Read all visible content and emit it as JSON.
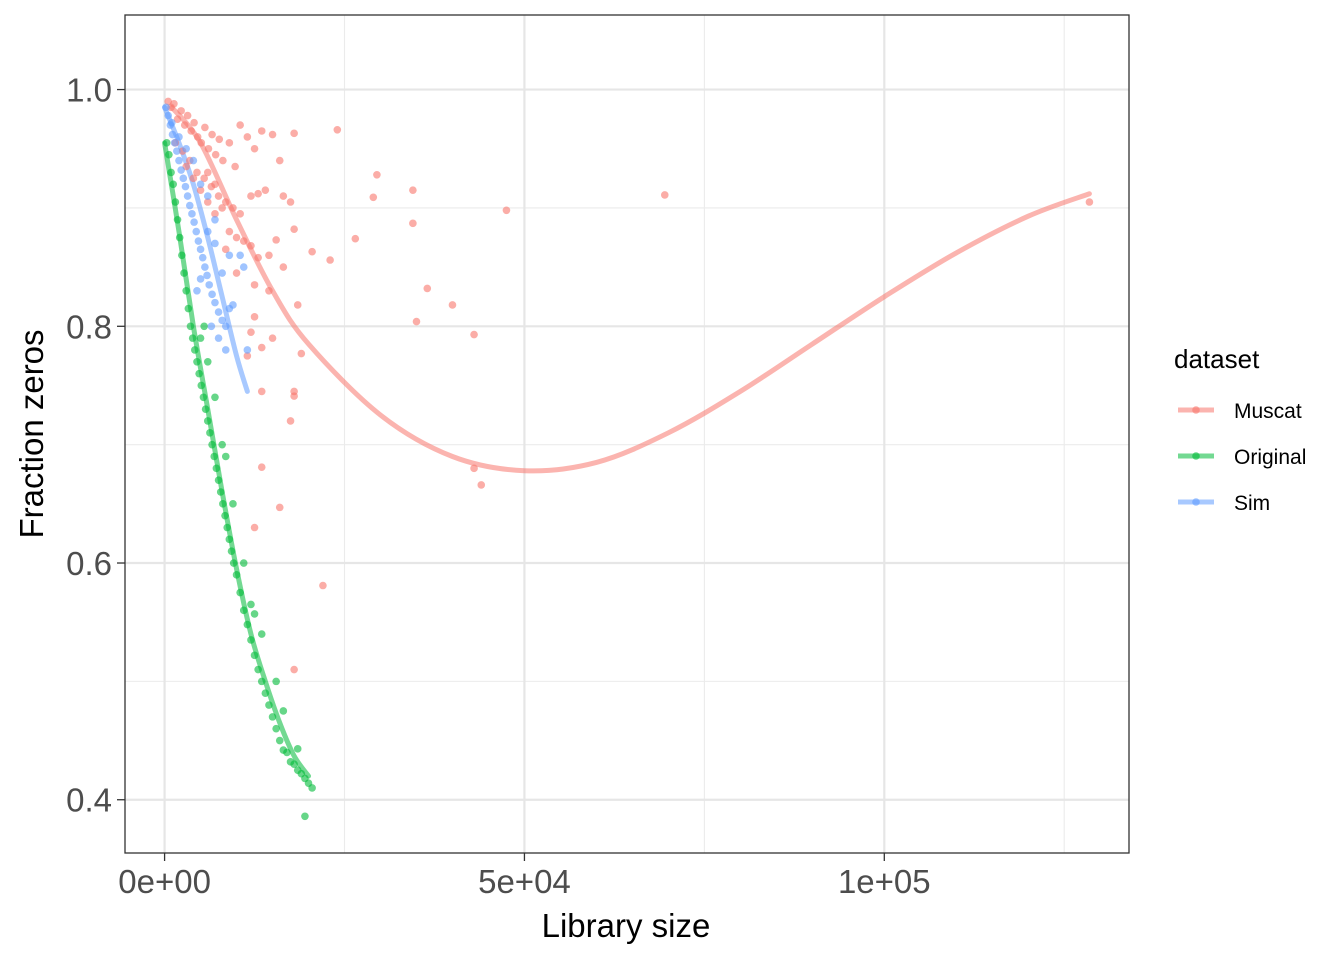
{
  "chart_data": {
    "type": "scatter",
    "xlabel": "Library size",
    "ylabel": "Fraction zeros",
    "xlim": [
      -5500,
      134000
    ],
    "ylim": [
      0.355,
      1.063
    ],
    "x_ticks": [
      0,
      50000,
      100000
    ],
    "x_tick_labels": [
      "0e+00",
      "5e+04",
      "1e+05"
    ],
    "y_ticks": [
      0.4,
      0.6,
      0.8,
      1.0
    ],
    "y_tick_labels": [
      "0.4",
      "0.6",
      "0.8",
      "1.0"
    ],
    "grid": true,
    "legend": {
      "title": "dataset",
      "position": "right"
    },
    "series": [
      {
        "name": "Muscat",
        "color": "#F8766D",
        "points": [
          [
            500,
            0.99
          ],
          [
            900,
            0.985
          ],
          [
            1300,
            0.988
          ],
          [
            1800,
            0.975
          ],
          [
            2300,
            0.982
          ],
          [
            2800,
            0.97
          ],
          [
            3200,
            0.978
          ],
          [
            3700,
            0.965
          ],
          [
            4100,
            0.972
          ],
          [
            4600,
            0.96
          ],
          [
            5100,
            0.955
          ],
          [
            5600,
            0.968
          ],
          [
            6100,
            0.95
          ],
          [
            6600,
            0.962
          ],
          [
            7100,
            0.945
          ],
          [
            7600,
            0.958
          ],
          [
            8100,
            0.94
          ],
          [
            9000,
            0.955
          ],
          [
            9800,
            0.935
          ],
          [
            10500,
            0.97
          ],
          [
            11500,
            0.96
          ],
          [
            12500,
            0.95
          ],
          [
            13500,
            0.965
          ],
          [
            15000,
            0.962
          ],
          [
            16000,
            0.94
          ],
          [
            18000,
            0.963
          ],
          [
            24000,
            0.966
          ],
          [
            1500,
            0.955
          ],
          [
            2500,
            0.948
          ],
          [
            3500,
            0.94
          ],
          [
            4500,
            0.93
          ],
          [
            5500,
            0.925
          ],
          [
            6500,
            0.918
          ],
          [
            7500,
            0.91
          ],
          [
            8500,
            0.905
          ],
          [
            9500,
            0.9
          ],
          [
            10500,
            0.895
          ],
          [
            12000,
            0.91
          ],
          [
            13000,
            0.912
          ],
          [
            14000,
            0.915
          ],
          [
            16500,
            0.91
          ],
          [
            17500,
            0.905
          ],
          [
            29500,
            0.928
          ],
          [
            29000,
            0.909
          ],
          [
            34500,
            0.915
          ],
          [
            34500,
            0.887
          ],
          [
            47500,
            0.898
          ],
          [
            69500,
            0.911
          ],
          [
            9000,
            0.88
          ],
          [
            10000,
            0.875
          ],
          [
            11000,
            0.872
          ],
          [
            12000,
            0.868
          ],
          [
            13000,
            0.858
          ],
          [
            14500,
            0.86
          ],
          [
            15500,
            0.873
          ],
          [
            16500,
            0.85
          ],
          [
            18000,
            0.882
          ],
          [
            20500,
            0.863
          ],
          [
            23000,
            0.856
          ],
          [
            26500,
            0.874
          ],
          [
            8500,
            0.865
          ],
          [
            10000,
            0.845
          ],
          [
            12500,
            0.835
          ],
          [
            14500,
            0.83
          ],
          [
            18500,
            0.818
          ],
          [
            36500,
            0.832
          ],
          [
            40000,
            0.818
          ],
          [
            35000,
            0.804
          ],
          [
            43000,
            0.793
          ],
          [
            12500,
            0.808
          ],
          [
            12000,
            0.795
          ],
          [
            13500,
            0.782
          ],
          [
            11500,
            0.775
          ],
          [
            15000,
            0.79
          ],
          [
            19000,
            0.777
          ],
          [
            13500,
            0.745
          ],
          [
            18000,
            0.745
          ],
          [
            18000,
            0.741
          ],
          [
            17500,
            0.72
          ],
          [
            13500,
            0.681
          ],
          [
            43000,
            0.68
          ],
          [
            44000,
            0.666
          ],
          [
            16000,
            0.647
          ],
          [
            12500,
            0.63
          ],
          [
            22000,
            0.581
          ],
          [
            18000,
            0.51
          ],
          [
            128500,
            0.905
          ],
          [
            3000,
            0.935
          ],
          [
            4000,
            0.925
          ],
          [
            5000,
            0.915
          ],
          [
            6000,
            0.905
          ],
          [
            7000,
            0.895
          ],
          [
            6000,
            0.93
          ],
          [
            7000,
            0.92
          ],
          [
            8000,
            0.9
          ]
        ],
        "fit": [
          [
            1000,
            0.985
          ],
          [
            5000,
            0.955
          ],
          [
            10000,
            0.89
          ],
          [
            15000,
            0.83
          ],
          [
            20000,
            0.785
          ],
          [
            30000,
            0.725
          ],
          [
            40000,
            0.69
          ],
          [
            50000,
            0.678
          ],
          [
            60000,
            0.685
          ],
          [
            70000,
            0.71
          ],
          [
            80000,
            0.745
          ],
          [
            90000,
            0.785
          ],
          [
            100000,
            0.825
          ],
          [
            110000,
            0.862
          ],
          [
            120000,
            0.893
          ],
          [
            128500,
            0.912
          ]
        ]
      },
      {
        "name": "Original",
        "color": "#00BA38",
        "points": [
          [
            300,
            0.955
          ],
          [
            600,
            0.945
          ],
          [
            900,
            0.93
          ],
          [
            1200,
            0.92
          ],
          [
            1500,
            0.905
          ],
          [
            1800,
            0.89
          ],
          [
            2100,
            0.875
          ],
          [
            2400,
            0.86
          ],
          [
            2700,
            0.845
          ],
          [
            3000,
            0.83
          ],
          [
            3300,
            0.815
          ],
          [
            3600,
            0.8
          ],
          [
            3900,
            0.79
          ],
          [
            4200,
            0.78
          ],
          [
            4500,
            0.77
          ],
          [
            4800,
            0.76
          ],
          [
            5100,
            0.75
          ],
          [
            5400,
            0.74
          ],
          [
            5700,
            0.73
          ],
          [
            6000,
            0.72
          ],
          [
            6300,
            0.71
          ],
          [
            6600,
            0.7
          ],
          [
            6900,
            0.69
          ],
          [
            7200,
            0.68
          ],
          [
            7500,
            0.67
          ],
          [
            7800,
            0.66
          ],
          [
            8100,
            0.65
          ],
          [
            8400,
            0.64
          ],
          [
            8700,
            0.63
          ],
          [
            9000,
            0.62
          ],
          [
            9300,
            0.61
          ],
          [
            9600,
            0.6
          ],
          [
            10000,
            0.59
          ],
          [
            10500,
            0.575
          ],
          [
            11000,
            0.56
          ],
          [
            11500,
            0.548
          ],
          [
            12000,
            0.535
          ],
          [
            12500,
            0.522
          ],
          [
            13000,
            0.51
          ],
          [
            13500,
            0.5
          ],
          [
            14000,
            0.49
          ],
          [
            14500,
            0.48
          ],
          [
            15000,
            0.47
          ],
          [
            15500,
            0.46
          ],
          [
            16000,
            0.45
          ],
          [
            16500,
            0.442
          ],
          [
            17000,
            0.44
          ],
          [
            17500,
            0.432
          ],
          [
            18000,
            0.43
          ],
          [
            18500,
            0.425
          ],
          [
            19000,
            0.422
          ],
          [
            19500,
            0.418
          ],
          [
            20000,
            0.414
          ],
          [
            20500,
            0.41
          ],
          [
            19500,
            0.386
          ],
          [
            18500,
            0.443
          ],
          [
            5000,
            0.79
          ],
          [
            5500,
            0.8
          ],
          [
            6000,
            0.77
          ],
          [
            7000,
            0.74
          ],
          [
            8000,
            0.7
          ],
          [
            8500,
            0.69
          ],
          [
            9500,
            0.65
          ],
          [
            11000,
            0.6
          ],
          [
            12000,
            0.565
          ],
          [
            12500,
            0.557
          ],
          [
            13500,
            0.54
          ],
          [
            15500,
            0.5
          ],
          [
            16500,
            0.475
          ]
        ],
        "fit": [
          [
            0,
            0.955
          ],
          [
            2000,
            0.88
          ],
          [
            4000,
            0.8
          ],
          [
            6000,
            0.73
          ],
          [
            8000,
            0.66
          ],
          [
            10000,
            0.595
          ],
          [
            12000,
            0.54
          ],
          [
            14000,
            0.5
          ],
          [
            16000,
            0.465
          ],
          [
            18000,
            0.437
          ],
          [
            20000,
            0.42
          ]
        ]
      },
      {
        "name": "Sim",
        "color": "#619CFF",
        "points": [
          [
            200,
            0.985
          ],
          [
            500,
            0.978
          ],
          [
            800,
            0.97
          ],
          [
            1100,
            0.962
          ],
          [
            1400,
            0.955
          ],
          [
            1700,
            0.948
          ],
          [
            2000,
            0.94
          ],
          [
            2300,
            0.932
          ],
          [
            2600,
            0.925
          ],
          [
            2900,
            0.918
          ],
          [
            3200,
            0.91
          ],
          [
            3500,
            0.902
          ],
          [
            3800,
            0.895
          ],
          [
            4100,
            0.888
          ],
          [
            4400,
            0.88
          ],
          [
            4700,
            0.872
          ],
          [
            5000,
            0.865
          ],
          [
            5300,
            0.858
          ],
          [
            5600,
            0.85
          ],
          [
            5900,
            0.843
          ],
          [
            6200,
            0.835
          ],
          [
            6600,
            0.827
          ],
          [
            7000,
            0.82
          ],
          [
            7500,
            0.812
          ],
          [
            8000,
            0.805
          ],
          [
            8500,
            0.8
          ],
          [
            9000,
            0.815
          ],
          [
            9500,
            0.818
          ],
          [
            10500,
            0.86
          ],
          [
            11000,
            0.85
          ],
          [
            11500,
            0.78
          ],
          [
            8500,
            0.78
          ],
          [
            4000,
            0.94
          ],
          [
            5000,
            0.92
          ],
          [
            6000,
            0.91
          ],
          [
            7000,
            0.89
          ],
          [
            3000,
            0.95
          ],
          [
            2000,
            0.96
          ],
          [
            1000,
            0.972
          ],
          [
            6000,
            0.88
          ],
          [
            7000,
            0.87
          ],
          [
            9000,
            0.86
          ],
          [
            8000,
            0.845
          ],
          [
            5000,
            0.84
          ],
          [
            4500,
            0.83
          ],
          [
            6500,
            0.8
          ],
          [
            7500,
            0.79
          ]
        ],
        "fit": [
          [
            0,
            0.985
          ],
          [
            2000,
            0.955
          ],
          [
            4000,
            0.92
          ],
          [
            6000,
            0.875
          ],
          [
            8000,
            0.825
          ],
          [
            10000,
            0.775
          ],
          [
            11500,
            0.745
          ]
        ]
      }
    ]
  }
}
